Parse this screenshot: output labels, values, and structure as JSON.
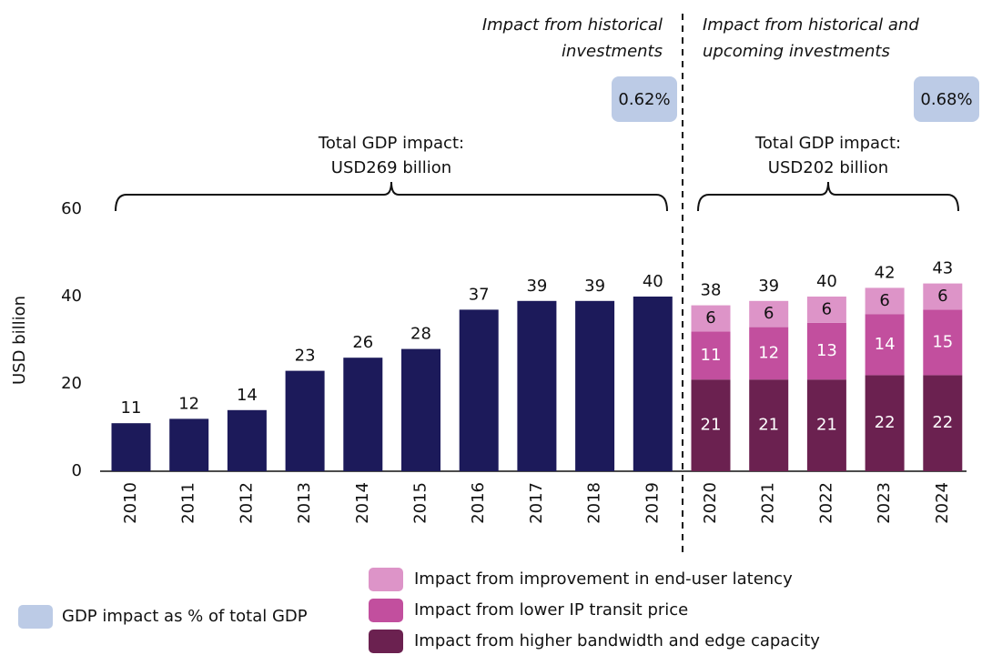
{
  "chart_data": {
    "type": "bar",
    "stacked": true,
    "y_label": "USD billion",
    "ylim": [
      0,
      60
    ],
    "yticks": [
      0,
      20,
      40,
      60
    ],
    "grid": false,
    "categories": [
      "2010",
      "2011",
      "2012",
      "2013",
      "2014",
      "2015",
      "2016",
      "2017",
      "2018",
      "2019",
      "2020",
      "2021",
      "2022",
      "2023",
      "2024"
    ],
    "historical": {
      "color": "#1c1a5a",
      "values": [
        11,
        12,
        14,
        23,
        26,
        28,
        37,
        39,
        39,
        40,
        null,
        null,
        null,
        null,
        null
      ]
    },
    "series": [
      {
        "name": "Impact from higher bandwidth and edge capacity",
        "color": "#6b2150",
        "values": [
          null,
          null,
          null,
          null,
          null,
          null,
          null,
          null,
          null,
          null,
          21,
          21,
          21,
          22,
          22
        ]
      },
      {
        "name": "Impact from lower IP transit price",
        "color": "#c24f9e",
        "values": [
          null,
          null,
          null,
          null,
          null,
          null,
          null,
          null,
          null,
          null,
          11,
          12,
          13,
          14,
          15
        ]
      },
      {
        "name": "Impact from improvement in end-user latency",
        "color": "#dd94c8",
        "values": [
          null,
          null,
          null,
          null,
          null,
          null,
          null,
          null,
          null,
          null,
          6,
          6,
          6,
          6,
          6
        ]
      }
    ],
    "totals": [
      null,
      null,
      null,
      null,
      null,
      null,
      null,
      null,
      null,
      null,
      38,
      39,
      40,
      42,
      43
    ],
    "share_legend": {
      "name": "GDP impact as % of total GDP",
      "color": "#bccbe6"
    },
    "panels": [
      {
        "heading": [
          "Impact from historical",
          "investments"
        ],
        "share": "0.62%",
        "total": [
          "Total GDP impact:",
          "USD269 billion"
        ]
      },
      {
        "heading": [
          "Impact from historical and",
          "upcoming investments"
        ],
        "share": "0.68%",
        "total": [
          "Total GDP impact:",
          "USD202 billion"
        ]
      }
    ]
  }
}
